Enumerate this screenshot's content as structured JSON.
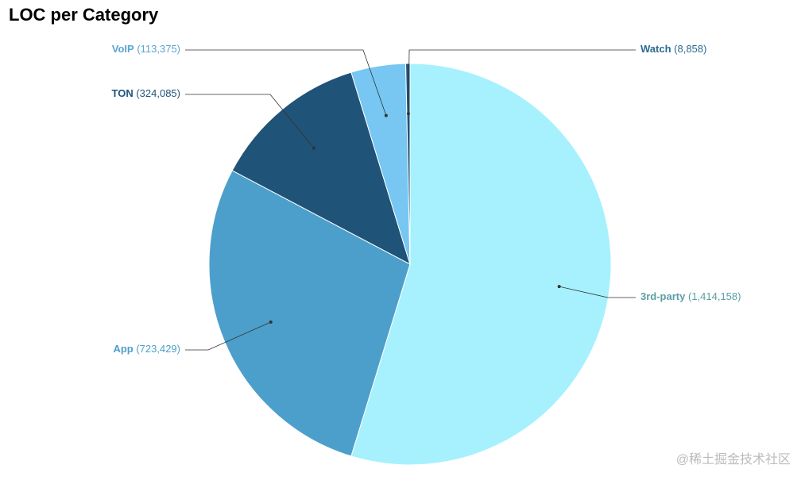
{
  "chart_data": {
    "type": "pie",
    "title": "LOC per Category",
    "categories": [
      "3rd-party",
      "App",
      "TON",
      "VoIP",
      "Watch"
    ],
    "values": [
      1414158,
      723429,
      324085,
      113375,
      8858
    ],
    "value_labels": [
      "(1,414,158)",
      "(723,429)",
      "(324,085)",
      "(113,375)",
      "(8,858)"
    ],
    "colors": [
      "#a6f1fd",
      "#4d9fcb",
      "#1f5378",
      "#77c7f2",
      "#1f5378"
    ],
    "label_colors": [
      "#5b9ea5",
      "#4d9fcb",
      "#1f5378",
      "#5aa5cf",
      "#2a6b93"
    ],
    "watermark": "@稀土掘金技术社区"
  }
}
